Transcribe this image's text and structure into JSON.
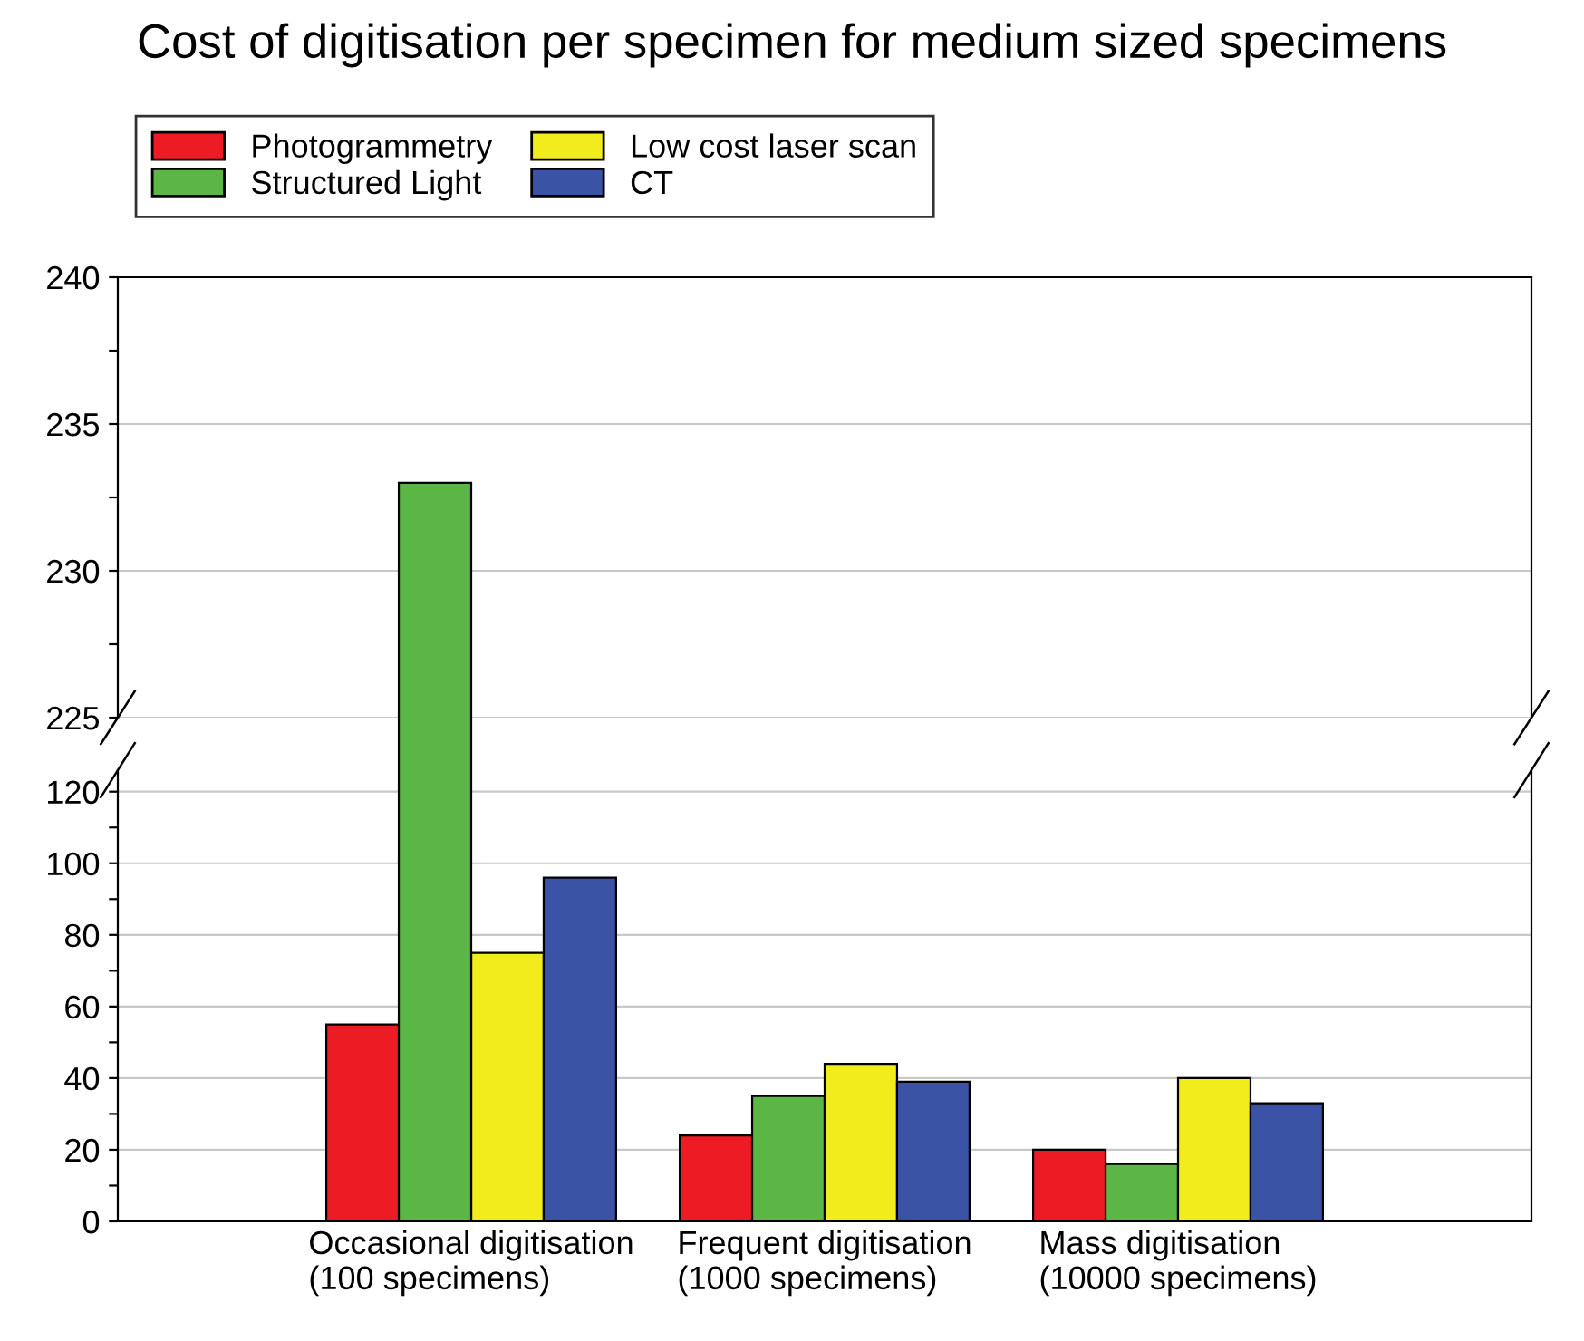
{
  "chart_data": [
    {
      "type": "bar",
      "title": "Cost of digitisation per specimen for medium sized specimens",
      "categories": [
        null,
        null,
        null
      ],
      "series": [
        {
          "values": [
            null,
            null,
            null
          ]
        },
        {
          "color": "#5cb646",
          "values": [
            233,
            null,
            null
          ]
        },
        {
          "values": [
            null,
            null,
            null
          ]
        },
        {
          "values": [
            null,
            null,
            null
          ]
        }
      ],
      "ylim": [
        225,
        240
      ],
      "yticks": [
        225,
        {
          "value": 227.5,
          "label": null
        },
        230,
        {
          "value": 232.5,
          "label": null
        },
        235,
        {
          "value": 237.5,
          "label": null
        },
        240
      ],
      "grid": "y",
      "tick_labels": "y"
    },
    {
      "type": "bar",
      "categories": [
        "Occasional digitisation\n(100 specimens)",
        "Frequent digitisation\n(1000 specimens)",
        "Mass digitisation\n(10000 specimens)"
      ],
      "series": [
        {
          "name": "Photogrammetry",
          "color": "#ed1c24",
          "values": [
            55,
            24,
            20
          ]
        },
        {
          "name": "Structured Light",
          "color": "#5cb646",
          "values": [
            null,
            35,
            16
          ]
        },
        {
          "name": "Low cost laser scan",
          "color": "#f2ec1c",
          "values": [
            75,
            44,
            40
          ]
        },
        {
          "name": "CT",
          "color": "#3a53a4",
          "values": [
            96,
            39,
            33
          ]
        }
      ],
      "ylim": [
        0,
        126
      ],
      "yticks": [
        0,
        {
          "value": 10,
          "label": null
        },
        20,
        {
          "value": 30,
          "label": null
        },
        40,
        {
          "value": 50,
          "label": null
        },
        60,
        {
          "value": 70,
          "label": null
        },
        80,
        {
          "value": 90,
          "label": null
        },
        100,
        {
          "value": 110,
          "label": null
        },
        120
      ],
      "grid": "y",
      "legend": "top left"
    }
  ]
}
